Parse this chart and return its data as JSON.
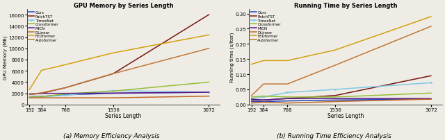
{
  "x": [
    192,
    384,
    768,
    1536,
    3072
  ],
  "memory": {
    "Ours": [
      1400,
      1450,
      1750,
      2000,
      2200
    ],
    "PatchTST": [
      1800,
      2000,
      3000,
      5500,
      16000
    ],
    "TimesNet": [
      1350,
      1350,
      1650,
      2500,
      2200
    ],
    "Crossformer": [
      1300,
      1400,
      1900,
      2400,
      4000
    ],
    "MICN": [
      1900,
      2000,
      2000,
      2050,
      2200
    ],
    "DLinear": [
      1200,
      1200,
      1200,
      1200,
      1500
    ],
    "FEDformer": [
      2700,
      6100,
      7100,
      9200,
      12400
    ],
    "Autoformer": [
      1800,
      2100,
      3000,
      5500,
      10000
    ]
  },
  "time": {
    "Ours": [
      0.01,
      0.01,
      0.012,
      0.015,
      0.018
    ],
    "PatchTST": [
      0.015,
      0.015,
      0.02,
      0.03,
      0.095
    ],
    "TimesNet": [
      0.02,
      0.025,
      0.04,
      0.05,
      0.072
    ],
    "Crossformer": [
      0.025,
      0.028,
      0.025,
      0.025,
      0.038
    ],
    "MICN": [
      0.018,
      0.015,
      0.02,
      0.02,
      0.02
    ],
    "DLinear": [
      0.005,
      0.008,
      0.005,
      0.01,
      0.018
    ],
    "FEDformer": [
      0.133,
      0.145,
      0.145,
      0.18,
      0.29
    ],
    "Autoformer": [
      0.03,
      0.068,
      0.068,
      0.13,
      0.258
    ]
  },
  "colors": {
    "Ours": "#2244bb",
    "PatchTST": "#7b1515",
    "TimesNet": "#80c8e8",
    "Crossformer": "#95be38",
    "MICN": "#5a1a8a",
    "DLinear": "#c06828",
    "FEDformer": "#d4a010",
    "Autoformer": "#c07838"
  },
  "series": [
    "Ours",
    "PatchTST",
    "TimesNet",
    "Crossformer",
    "MICN",
    "DLinear",
    "FEDformer",
    "Autoformer"
  ],
  "title_mem": "GPU Memory by Series Length",
  "title_time": "Running Time by Series Length",
  "xlabel": "Series Length",
  "ylabel_mem": "GPU Memory (MB)",
  "ylabel_time": "Running time (s/iter)",
  "caption_mem": "(a) Memory Efficiency Analysis",
  "caption_time": "(b) Running Time Efficiency Analysis",
  "xtick_labels": [
    "192",
    "384",
    "768",
    "1536",
    "3072"
  ],
  "yticks_mem": [
    0,
    2000,
    4000,
    6000,
    8000,
    10000,
    12000,
    14000,
    16000
  ],
  "yticks_time": [
    0.0,
    0.05,
    0.1,
    0.15,
    0.2,
    0.25,
    0.3
  ],
  "ylim_mem": [
    0,
    17000
  ],
  "ylim_time": [
    0.0,
    0.315
  ],
  "bg_color": "#eeece4"
}
